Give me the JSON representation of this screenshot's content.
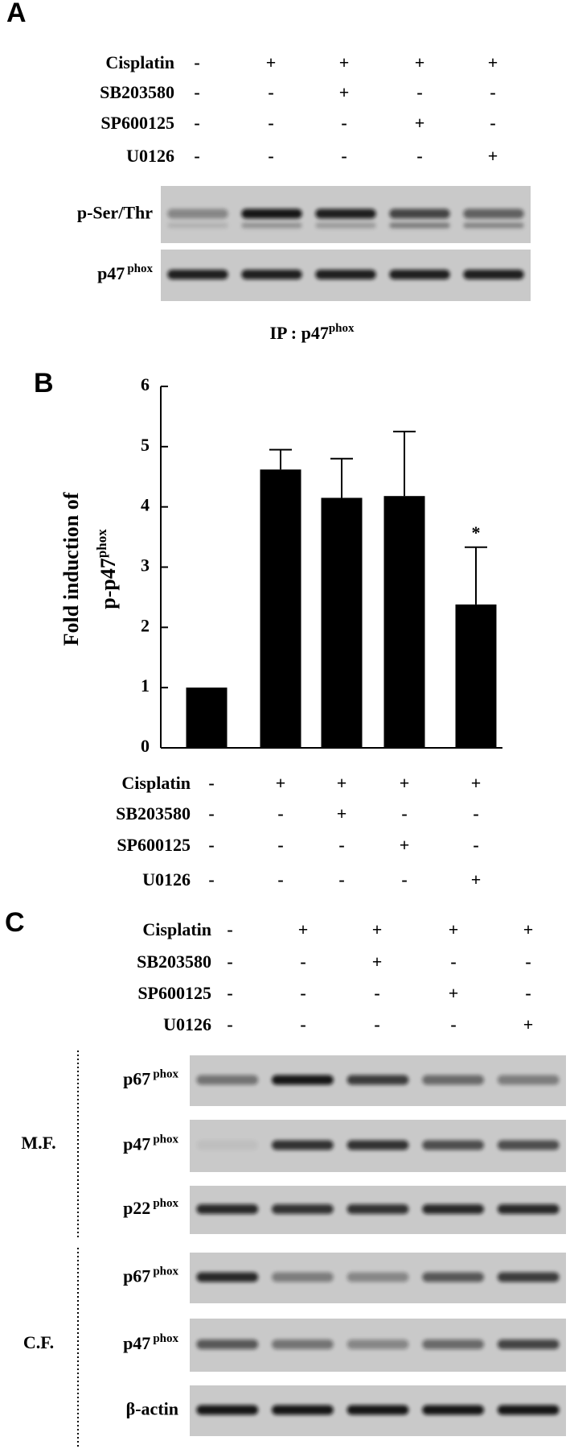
{
  "panel_a": {
    "label": "A",
    "treatments": {
      "names": [
        "Cisplatin",
        "SB203580",
        "SP600125",
        "U0126"
      ],
      "signs": [
        [
          "-",
          "+",
          "+",
          "+",
          "+"
        ],
        [
          "-",
          "-",
          "+",
          "-",
          "-"
        ],
        [
          "-",
          "-",
          "-",
          "+",
          "-"
        ],
        [
          "-",
          "-",
          "-",
          "-",
          "+"
        ]
      ]
    },
    "blots": [
      {
        "name": "p-Ser/Thr"
      },
      {
        "name": "p47",
        "sup": "phox"
      }
    ],
    "caption": "IP : p47",
    "caption_sup": "phox"
  },
  "panel_b": {
    "label": "B",
    "treatments": {
      "names": [
        "Cisplatin",
        "SB203580",
        "SP600125",
        "U0126"
      ],
      "signs": [
        [
          "-",
          "+",
          "+",
          "+",
          "+"
        ],
        [
          "-",
          "-",
          "+",
          "-",
          "-"
        ],
        [
          "-",
          "-",
          "-",
          "+",
          "-"
        ],
        [
          "-",
          "-",
          "-",
          "-",
          "+"
        ]
      ]
    }
  },
  "chart_data": {
    "type": "bar",
    "ylabel": "Fold induction of",
    "ylabel2": "p-p47",
    "ylabel2_sup": "phox",
    "values": [
      1,
      4.62,
      4.15,
      4.18,
      2.38
    ],
    "errors": [
      null,
      0.33,
      0.65,
      1.07,
      0.95
    ],
    "annotations": [
      null,
      null,
      null,
      null,
      "*"
    ],
    "color": "#000000",
    "ylim": [
      0,
      6
    ],
    "yticks": [
      0,
      1,
      2,
      3,
      4,
      5,
      6
    ]
  },
  "panel_c": {
    "label": "C",
    "treatments": {
      "names": [
        "Cisplatin",
        "SB203580",
        "SP600125",
        "U0126"
      ],
      "signs": [
        [
          "-",
          "+",
          "+",
          "+",
          "+"
        ],
        [
          "-",
          "-",
          "+",
          "-",
          "-"
        ],
        [
          "-",
          "-",
          "-",
          "+",
          "-"
        ],
        [
          "-",
          "-",
          "-",
          "-",
          "+"
        ]
      ]
    },
    "groups": [
      {
        "name": "M.F.",
        "blots": [
          {
            "name": "p67",
            "sup": "phox"
          },
          {
            "name": "p47",
            "sup": "phox"
          },
          {
            "name": "p22",
            "sup": "phox"
          }
        ]
      },
      {
        "name": "C.F.",
        "blots": [
          {
            "name": "p67",
            "sup": "phox"
          },
          {
            "name": "p47",
            "sup": "phox"
          },
          {
            "name": "β-actin"
          }
        ]
      }
    ]
  }
}
